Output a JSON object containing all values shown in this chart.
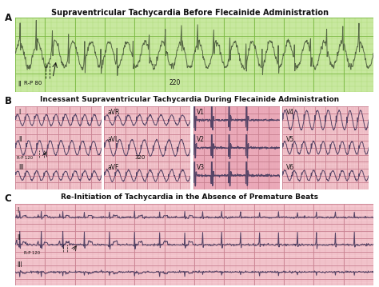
{
  "title_A": "Supraventricular Tachycardia Before Flecainide Administration",
  "title_B": "Incessant Supraventricular Tachycardia During Flecainide Administration",
  "title_C": "Re-Initiation of Tachycardia in the Absence of Premature Beats",
  "label_A": "A",
  "label_B": "B",
  "label_C": "C",
  "bg_A": "#c8e8a0",
  "bg_B": "#f5c8d0",
  "bg_C": "#f5c8d0",
  "bg_B_dark": "#e8b0bc",
  "grid_minor_A": "#a8d870",
  "grid_major_A": "#78b840",
  "grid_minor_B": "#e0a8b0",
  "grid_major_B": "#c88090",
  "grid_minor_C": "#e0a8b0",
  "grid_major_C": "#c88090",
  "ecg_color_A": "#556644",
  "ecg_color_B": "#554466",
  "ecg_color_C": "#554466",
  "white": "#ffffff",
  "black": "#111111",
  "title_fontsize": 7.0,
  "label_fontsize": 8.5,
  "lead_fontsize": 5.5,
  "annot_fontsize": 5.0
}
